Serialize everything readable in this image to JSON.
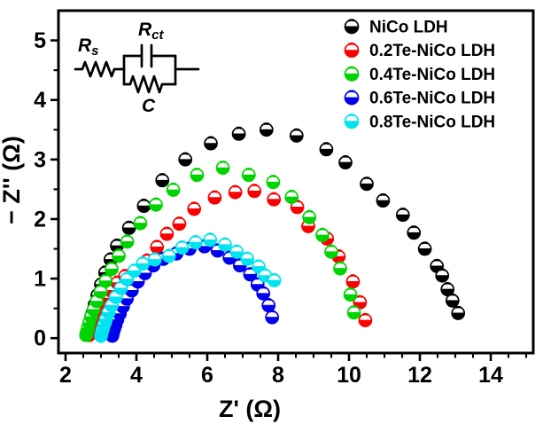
{
  "figure": {
    "background": "#ffffff"
  },
  "chart_data": {
    "type": "scatter",
    "title": "",
    "xlabel": "Z' (Ω)",
    "ylabel": "− Z'' (Ω)",
    "xlim": [
      1.8,
      15.2
    ],
    "ylim": [
      -0.25,
      5.5
    ],
    "x_major_ticks": [
      2,
      4,
      6,
      8,
      10,
      12,
      14
    ],
    "y_major_ticks": [
      0,
      1,
      2,
      3,
      4,
      5
    ],
    "x_minor_step": 0.5,
    "y_minor_step": 0.5,
    "grid": false,
    "legend_position": "top-right-inside",
    "marker_style": "circle-half-filled-bottom",
    "series": [
      {
        "name": "NiCo LDH",
        "color": "#000000",
        "points": [
          [
            2.62,
            0.06
          ],
          [
            2.64,
            0.12
          ],
          [
            2.67,
            0.2
          ],
          [
            2.71,
            0.3
          ],
          [
            2.76,
            0.42
          ],
          [
            2.82,
            0.56
          ],
          [
            2.9,
            0.72
          ],
          [
            3.0,
            0.9
          ],
          [
            3.12,
            1.1
          ],
          [
            3.27,
            1.32
          ],
          [
            3.45,
            1.55
          ],
          [
            3.79,
            1.85
          ],
          [
            4.21,
            2.22
          ],
          [
            4.73,
            2.65
          ],
          [
            5.38,
            3.0
          ],
          [
            6.1,
            3.27
          ],
          [
            6.89,
            3.43
          ],
          [
            7.67,
            3.5
          ],
          [
            8.52,
            3.4
          ],
          [
            9.36,
            3.17
          ],
          [
            9.9,
            2.95
          ],
          [
            10.5,
            2.59
          ],
          [
            10.96,
            2.31
          ],
          [
            11.52,
            2.07
          ],
          [
            11.83,
            1.77
          ],
          [
            12.14,
            1.5
          ],
          [
            12.48,
            1.21
          ],
          [
            12.63,
            1.05
          ],
          [
            12.78,
            0.82
          ],
          [
            12.92,
            0.63
          ],
          [
            13.08,
            0.42
          ]
        ]
      },
      {
        "name": "0.2Te-NiCo LDH",
        "color": "#fa0000",
        "points": [
          [
            2.66,
            0.05
          ],
          [
            2.68,
            0.1
          ],
          [
            2.71,
            0.16
          ],
          [
            2.76,
            0.24
          ],
          [
            2.82,
            0.33
          ],
          [
            2.9,
            0.44
          ],
          [
            3.0,
            0.55
          ],
          [
            3.13,
            0.67
          ],
          [
            3.28,
            0.8
          ],
          [
            3.46,
            0.93
          ],
          [
            3.68,
            1.04
          ],
          [
            4.04,
            1.12
          ],
          [
            4.3,
            1.3
          ],
          [
            4.58,
            1.53
          ],
          [
            4.86,
            1.75
          ],
          [
            5.21,
            1.92
          ],
          [
            5.63,
            2.17
          ],
          [
            6.21,
            2.36
          ],
          [
            6.79,
            2.45
          ],
          [
            7.33,
            2.47
          ],
          [
            7.88,
            2.33
          ],
          [
            8.54,
            2.2
          ],
          [
            8.85,
            1.88
          ],
          [
            9.38,
            1.67
          ],
          [
            9.71,
            1.37
          ],
          [
            10.11,
            0.95
          ],
          [
            10.31,
            0.6
          ],
          [
            10.46,
            0.3
          ]
        ]
      },
      {
        "name": "0.4Te-NiCo LDH",
        "color": "#00d400",
        "points": [
          [
            2.58,
            0.05
          ],
          [
            2.6,
            0.1
          ],
          [
            2.63,
            0.17
          ],
          [
            2.67,
            0.26
          ],
          [
            2.72,
            0.36
          ],
          [
            2.79,
            0.48
          ],
          [
            2.88,
            0.62
          ],
          [
            2.99,
            0.78
          ],
          [
            3.13,
            0.96
          ],
          [
            3.3,
            1.16
          ],
          [
            3.5,
            1.38
          ],
          [
            3.74,
            1.62
          ],
          [
            4.11,
            1.93
          ],
          [
            4.55,
            2.24
          ],
          [
            5.04,
            2.49
          ],
          [
            5.71,
            2.74
          ],
          [
            6.44,
            2.86
          ],
          [
            7.17,
            2.74
          ],
          [
            7.86,
            2.62
          ],
          [
            8.38,
            2.37
          ],
          [
            8.88,
            2.03
          ],
          [
            9.25,
            1.73
          ],
          [
            9.5,
            1.45
          ],
          [
            9.75,
            1.17
          ],
          [
            10.04,
            0.73
          ],
          [
            10.14,
            0.43
          ]
        ]
      },
      {
        "name": "0.6Te-NiCo LDH",
        "color": "#0000ee",
        "points": [
          [
            3.32,
            0.04
          ],
          [
            3.34,
            0.09
          ],
          [
            3.37,
            0.15
          ],
          [
            3.41,
            0.22
          ],
          [
            3.46,
            0.31
          ],
          [
            3.53,
            0.41
          ],
          [
            3.62,
            0.53
          ],
          [
            3.73,
            0.66
          ],
          [
            3.87,
            0.8
          ],
          [
            4.04,
            0.95
          ],
          [
            4.24,
            1.09
          ],
          [
            4.48,
            1.22
          ],
          [
            4.76,
            1.33
          ],
          [
            5.13,
            1.42
          ],
          [
            5.5,
            1.5
          ],
          [
            5.92,
            1.54
          ],
          [
            6.29,
            1.47
          ],
          [
            6.63,
            1.35
          ],
          [
            6.92,
            1.22
          ],
          [
            7.21,
            1.07
          ],
          [
            7.42,
            0.9
          ],
          [
            7.58,
            0.75
          ],
          [
            7.73,
            0.55
          ],
          [
            7.83,
            0.35
          ]
        ]
      },
      {
        "name": "0.8Te-NiCo LDH",
        "color": "#00e4f0",
        "points": [
          [
            3.0,
            0.04
          ],
          [
            3.02,
            0.09
          ],
          [
            3.05,
            0.15
          ],
          [
            3.09,
            0.23
          ],
          [
            3.14,
            0.32
          ],
          [
            3.21,
            0.43
          ],
          [
            3.3,
            0.55
          ],
          [
            3.42,
            0.69
          ],
          [
            3.56,
            0.84
          ],
          [
            3.73,
            0.99
          ],
          [
            3.94,
            1.13
          ],
          [
            4.18,
            1.25
          ],
          [
            4.52,
            1.32
          ],
          [
            4.92,
            1.38
          ],
          [
            5.29,
            1.52
          ],
          [
            5.67,
            1.61
          ],
          [
            6.08,
            1.65
          ],
          [
            6.5,
            1.57
          ],
          [
            6.83,
            1.45
          ],
          [
            7.13,
            1.33
          ],
          [
            7.45,
            1.2
          ],
          [
            7.63,
            1.05
          ],
          [
            7.89,
            0.97
          ]
        ]
      }
    ]
  },
  "inset_circuit": {
    "rs_label": {
      "main": "R",
      "sub": "s"
    },
    "rct_label": {
      "main": "R",
      "sub": "ct"
    },
    "c_label": "C"
  }
}
